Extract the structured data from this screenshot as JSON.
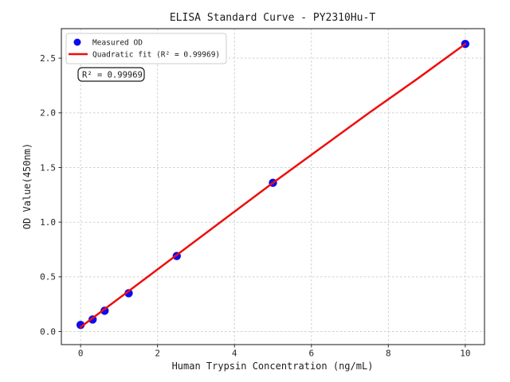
{
  "title": "ELISA Standard Curve - PY2310Hu-T",
  "legend": {
    "measured_label": "Measured OD",
    "fit_label": "Quadratic fit (R² = 0.99969)"
  },
  "annotation": {
    "r_squared_label": "R² = 0.99969"
  },
  "colors": {
    "point": "#0b0bf0",
    "fit_line": "#ee0e0e",
    "grid": "#c9c9c9",
    "axis": "#2b2b2b",
    "background": "#ffffff"
  },
  "chart_data": {
    "type": "scatter",
    "title": "ELISA Standard Curve - PY2310Hu-T",
    "xlabel": "Human Trypsin Concentration (ng/mL)",
    "ylabel": "OD Value(450nm)",
    "xlim": [
      -0.5,
      10.5
    ],
    "ylim": [
      -0.12,
      2.77
    ],
    "x_ticks": [
      0,
      2,
      4,
      6,
      8,
      10
    ],
    "x_tick_labels": [
      "0",
      "2",
      "4",
      "6",
      "8",
      "10"
    ],
    "y_ticks": [
      0.0,
      0.5,
      1.0,
      1.5,
      2.0,
      2.5
    ],
    "y_tick_labels": [
      "0.0",
      "0.5",
      "1.0",
      "1.5",
      "2.0",
      "2.5"
    ],
    "grid": true,
    "legend_position": "upper left",
    "r_squared": 0.99969,
    "series": [
      {
        "name": "Measured OD",
        "type": "scatter",
        "color": "#0b0bf0",
        "points": [
          [
            0,
            0.06
          ],
          [
            0.313,
            0.11
          ],
          [
            0.625,
            0.19
          ],
          [
            1.25,
            0.35
          ],
          [
            2.5,
            0.69
          ],
          [
            5,
            1.36
          ],
          [
            10,
            2.63
          ]
        ]
      },
      {
        "name": "Quadratic fit (R² = 0.99969)",
        "type": "line",
        "color": "#ee0e0e",
        "points": [
          [
            0,
            0.04
          ],
          [
            1.25,
            0.37
          ],
          [
            2.5,
            0.7
          ],
          [
            3.75,
            1.03
          ],
          [
            5,
            1.36
          ],
          [
            6.25,
            1.68
          ],
          [
            7.5,
            2.0
          ],
          [
            8.75,
            2.31
          ],
          [
            10,
            2.63
          ]
        ]
      }
    ]
  }
}
